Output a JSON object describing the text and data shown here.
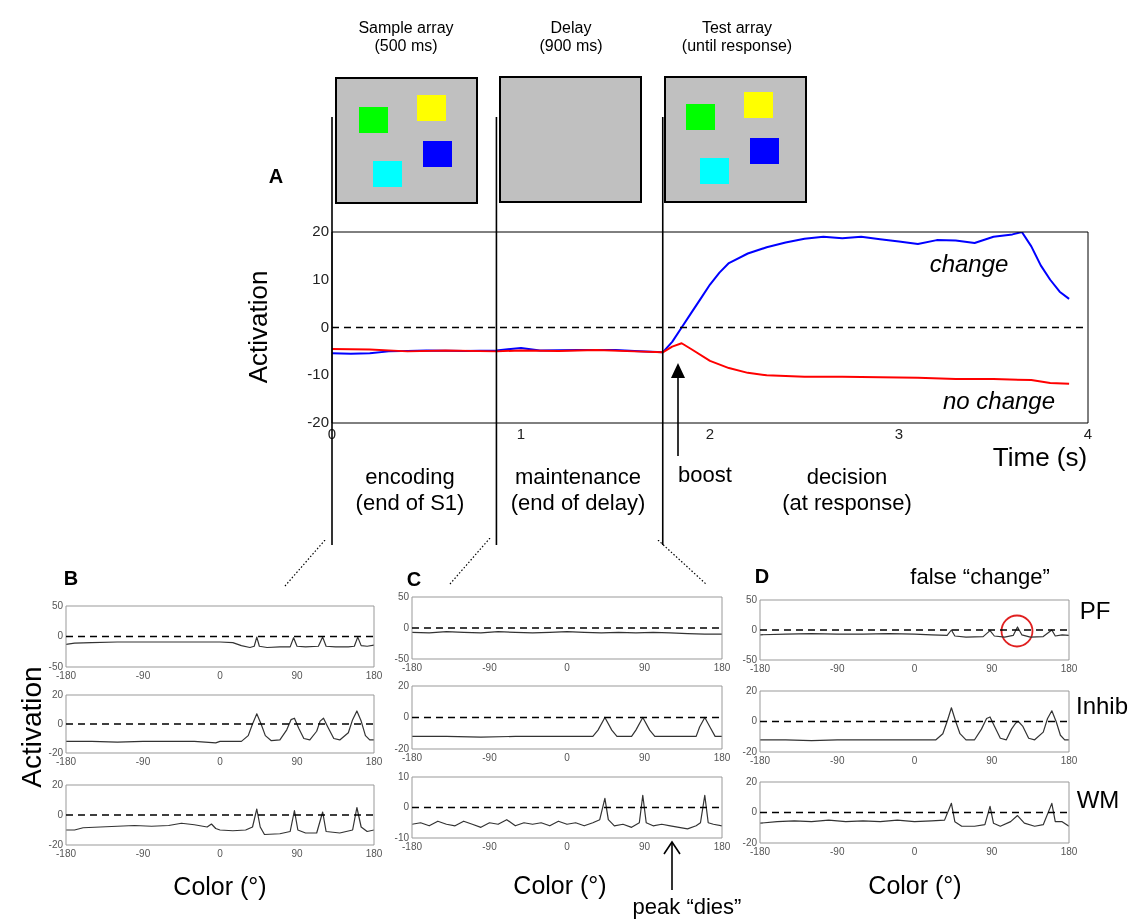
{
  "chart_data": [
    {
      "type": "line",
      "title": "A",
      "xlabel": "Time (s)",
      "ylabel": "Activation",
      "xlim": [
        0,
        4
      ],
      "xticks": [
        0,
        1,
        2,
        3,
        4
      ],
      "ylim": [
        -20,
        20
      ],
      "yticks": [
        -20,
        -10,
        0,
        10,
        20
      ],
      "series": [
        {
          "color": "#0000ff",
          "x": [
            0,
            0.1,
            0.2,
            0.3,
            0.5,
            0.7,
            0.87,
            1.0,
            1.1,
            1.3,
            1.5,
            1.6,
            1.75,
            1.8,
            1.85,
            1.9,
            1.95,
            2.0,
            2.05,
            2.1,
            2.2,
            2.3,
            2.4,
            2.5,
            2.6,
            2.7,
            2.8,
            2.9,
            3.0,
            3.1,
            3.2,
            3.3,
            3.4,
            3.5,
            3.6,
            3.65,
            3.7,
            3.75,
            3.8,
            3.85,
            3.9
          ],
          "values": [
            -5.4,
            -5.5,
            -5.4,
            -5,
            -4.8,
            -4.9,
            -4.8,
            -4.3,
            -4.8,
            -4.7,
            -4.7,
            -4.9,
            -5.2,
            -3,
            0,
            3,
            6,
            9,
            11.5,
            13.5,
            15.5,
            16.8,
            17.8,
            18.6,
            19,
            18.7,
            19,
            18.5,
            18,
            17.5,
            18.3,
            18.2,
            17.7,
            19,
            19.5,
            20,
            17,
            13,
            10,
            7.5,
            6
          ]
        },
        {
          "color": "#ff0000",
          "x": [
            0,
            0.2,
            0.4,
            0.6,
            0.87,
            1.0,
            1.2,
            1.4,
            1.6,
            1.75,
            1.8,
            1.85,
            1.9,
            2.0,
            2.1,
            2.2,
            2.3,
            2.5,
            2.7,
            2.9,
            3.1,
            3.3,
            3.5,
            3.7,
            3.8,
            3.9
          ],
          "values": [
            -4.5,
            -4.6,
            -5,
            -4.8,
            -5,
            -4.8,
            -4.9,
            -4.7,
            -5,
            -5.2,
            -4,
            -3.3,
            -4.5,
            -7,
            -8.5,
            -9.5,
            -10,
            -10.3,
            -10.3,
            -10.4,
            -10.5,
            -10.8,
            -10.8,
            -11,
            -11.6,
            -11.8
          ]
        }
      ],
      "ref_lines": [
        {
          "axis": "x",
          "value": 0
        },
        {
          "axis": "x",
          "value": 0.87
        },
        {
          "axis": "x",
          "value": 1.75
        },
        {
          "axis": "y",
          "value": 0,
          "line_style": "dashed"
        }
      ],
      "annotations": [
        "Sample array\n(500 ms)",
        "Delay\n(900 ms)",
        "Test array\n(until response)",
        "encoding\n(end of S1)",
        "maintenance\n(end of delay)",
        "boost",
        "decision\n(at response)",
        "change",
        "no change"
      ]
    },
    {
      "type": "line",
      "title": "B",
      "xlim": [
        -180,
        180
      ],
      "xticks": [
        -180,
        -90,
        0,
        90,
        180
      ],
      "ylim": [
        -50,
        50
      ],
      "yticks": [
        -50,
        0,
        50
      ],
      "series": [
        {
          "color": "#333333",
          "x": [
            -180,
            -170,
            -150,
            -120,
            -90,
            -60,
            -30,
            0,
            15,
            25,
            35,
            40,
            43,
            46,
            55,
            70,
            82,
            86,
            90,
            100,
            115,
            120,
            124,
            135,
            150,
            157,
            161,
            165,
            172,
            180
          ],
          "values": [
            -13,
            -11,
            -10,
            -9,
            -9,
            -9,
            -9,
            -9,
            -10,
            -15,
            -18,
            -16,
            -1,
            -16,
            -18,
            -17,
            -17,
            -2,
            -16,
            -17,
            -16,
            -1,
            -16,
            -17,
            -17,
            -16,
            -1,
            -15,
            -16,
            -14
          ]
        }
      ],
      "ref_lines": [
        {
          "axis": "y",
          "value": 0,
          "line_style": "dashed"
        }
      ]
    },
    {
      "type": "line",
      "ylabel": "Activation",
      "xlim": [
        -180,
        180
      ],
      "xticks": [
        -180,
        -90,
        0,
        90,
        180
      ],
      "ylim": [
        -20,
        20
      ],
      "yticks": [
        -20,
        0,
        20
      ],
      "series": [
        {
          "color": "#333333",
          "x": [
            -180,
            -150,
            -120,
            -90,
            -60,
            -30,
            -5,
            0,
            25,
            33,
            38,
            43,
            48,
            53,
            60,
            70,
            78,
            83,
            87,
            92,
            98,
            105,
            113,
            117,
            121,
            126,
            133,
            140,
            150,
            155,
            160,
            165,
            170,
            175,
            180
          ],
          "values": [
            -12,
            -12,
            -12.5,
            -12,
            -12,
            -12,
            -13,
            -12,
            -12,
            -8,
            0,
            7,
            0,
            -8,
            -11.5,
            -11,
            -4,
            3,
            4,
            -3,
            -10,
            -11,
            -5,
            2,
            4,
            -2,
            -10,
            -11,
            -6,
            3,
            9,
            2,
            -8,
            -11,
            -11
          ]
        }
      ],
      "ref_lines": [
        {
          "axis": "y",
          "value": 0,
          "line_style": "dashed"
        }
      ]
    },
    {
      "type": "line",
      "xlabel": "Color (°)",
      "xlim": [
        -180,
        180
      ],
      "xticks": [
        -180,
        -90,
        0,
        90,
        180
      ],
      "ylim": [
        -20,
        20
      ],
      "yticks": [
        -20,
        0,
        20
      ],
      "series": [
        {
          "color": "#333333",
          "x": [
            -180,
            -170,
            -160,
            -140,
            -120,
            -100,
            -80,
            -60,
            -45,
            -30,
            -15,
            -10,
            -5,
            0,
            15,
            30,
            38,
            43,
            47,
            52,
            70,
            82,
            87,
            91,
            100,
            113,
            120,
            124,
            140,
            155,
            160,
            165,
            172,
            180
          ],
          "values": [
            -10,
            -10,
            -8.5,
            -8,
            -7.5,
            -7,
            -7.5,
            -7,
            -5.5,
            -6.5,
            -8,
            -6,
            -9,
            -10,
            -10.5,
            -10,
            -8,
            4,
            -8,
            -13,
            -12.5,
            -11,
            3,
            -10,
            -12,
            -12,
            2,
            -11,
            -12,
            -10,
            5,
            -8,
            -11,
            -10
          ]
        }
      ],
      "ref_lines": [
        {
          "axis": "y",
          "value": 0,
          "line_style": "dashed"
        }
      ]
    },
    {
      "type": "line",
      "title": "C",
      "xlim": [
        -180,
        180
      ],
      "xticks": [
        -180,
        -90,
        0,
        90,
        180
      ],
      "ylim": [
        -50,
        50
      ],
      "yticks": [
        -50,
        0,
        50
      ],
      "series": [
        {
          "color": "#333333",
          "x": [
            -180,
            -160,
            -140,
            -120,
            -100,
            -80,
            -60,
            -40,
            -20,
            0,
            20,
            40,
            60,
            80,
            100,
            120,
            140,
            160,
            180
          ],
          "values": [
            -7,
            -8,
            -6,
            -7,
            -8,
            -6,
            -7,
            -8,
            -7,
            -6,
            -7,
            -8,
            -7,
            -8,
            -7,
            -8,
            -9,
            -10,
            -10
          ]
        }
      ],
      "ref_lines": [
        {
          "axis": "y",
          "value": 0,
          "line_style": "dashed"
        }
      ]
    },
    {
      "type": "line",
      "xlim": [
        -180,
        180
      ],
      "xticks": [
        -180,
        -90,
        0,
        90,
        180
      ],
      "ylim": [
        -20,
        20
      ],
      "yticks": [
        -20,
        0,
        20
      ],
      "series": [
        {
          "color": "#333333",
          "x": [
            -180,
            -140,
            -100,
            -60,
            -20,
            30,
            36,
            44,
            52,
            58,
            75,
            80,
            88,
            96,
            102,
            150,
            154,
            160,
            166,
            172,
            180
          ],
          "values": [
            -12,
            -12,
            -12.5,
            -12,
            -12,
            -12,
            -8,
            0,
            -8,
            -12,
            -12,
            -8,
            0,
            -8,
            -12,
            -12,
            -6,
            0,
            -6,
            -12,
            -12
          ]
        }
      ],
      "ref_lines": [
        {
          "axis": "y",
          "value": 0,
          "line_style": "dashed"
        }
      ]
    },
    {
      "type": "line",
      "xlabel": "Color (°)",
      "xlim": [
        -180,
        180
      ],
      "xticks": [
        -180,
        -90,
        0,
        90,
        180
      ],
      "ylim": [
        -10,
        10
      ],
      "yticks": [
        -10,
        0,
        10
      ],
      "series": [
        {
          "color": "#333333",
          "x": [
            -180,
            -170,
            -160,
            -150,
            -140,
            -130,
            -120,
            -110,
            -100,
            -90,
            -80,
            -70,
            -60,
            -50,
            -40,
            -30,
            -20,
            -10,
            0,
            10,
            20,
            30,
            38,
            44,
            48,
            55,
            65,
            75,
            84,
            88,
            92,
            100,
            110,
            120,
            130,
            140,
            150,
            155,
            160,
            164,
            170,
            180
          ],
          "values": [
            -5.5,
            -5,
            -6,
            -4.5,
            -5.5,
            -6,
            -4.5,
            -5.5,
            -6.5,
            -5,
            -5.5,
            -4,
            -6,
            -5,
            -5.5,
            -5,
            -6,
            -4.5,
            -5.5,
            -5,
            -6,
            -5,
            -4,
            3,
            -4,
            -6,
            -5.5,
            -6.5,
            -5,
            4,
            -5,
            -6,
            -5.5,
            -6,
            -6.5,
            -7,
            -6,
            -5,
            4,
            -5,
            -5.5,
            -6
          ]
        }
      ],
      "ref_lines": [
        {
          "axis": "y",
          "value": 0,
          "line_style": "dashed"
        }
      ],
      "annotations": [
        "peak “dies”"
      ]
    },
    {
      "type": "line",
      "title": "D",
      "xlim": [
        -180,
        180
      ],
      "xticks": [
        -180,
        -90,
        0,
        90,
        180
      ],
      "ylim": [
        -50,
        50
      ],
      "yticks": [
        -50,
        0,
        50
      ],
      "series": [
        {
          "color": "#333333",
          "x": [
            -180,
            -150,
            -120,
            -90,
            -60,
            -30,
            0,
            20,
            38,
            43,
            47,
            60,
            80,
            88,
            93,
            105,
            115,
            120,
            125,
            135,
            150,
            160,
            164,
            172,
            180
          ],
          "values": [
            -8,
            -7,
            -6,
            -7,
            -7,
            -6,
            -7,
            -8,
            -9,
            0,
            -10,
            -12,
            -11,
            -1,
            -10,
            -12,
            -9,
            5,
            -8,
            -12,
            -11,
            0,
            -10,
            -8,
            -9
          ]
        }
      ],
      "ref_lines": [
        {
          "axis": "y",
          "value": 0,
          "line_style": "dashed"
        }
      ],
      "annotations": [
        "false “change”",
        "PF"
      ]
    },
    {
      "type": "line",
      "xlim": [
        -180,
        180
      ],
      "xticks": [
        -180,
        -90,
        0,
        90,
        180
      ],
      "ylim": [
        -20,
        20
      ],
      "yticks": [
        -20,
        0,
        20
      ],
      "series": [
        {
          "color": "#333333",
          "x": [
            -180,
            -150,
            -120,
            -90,
            -60,
            -30,
            0,
            25,
            33,
            38,
            43,
            48,
            53,
            60,
            70,
            78,
            84,
            88,
            93,
            100,
            107,
            113,
            118,
            121,
            126,
            133,
            140,
            150,
            155,
            160,
            165,
            170,
            175,
            180
          ],
          "values": [
            -12,
            -12,
            -12.5,
            -12,
            -12,
            -12,
            -12,
            -12,
            -8,
            0,
            9,
            0,
            -8,
            -12,
            -12,
            -5,
            2,
            3,
            -3,
            -11,
            -12,
            -5,
            -1,
            0,
            -3,
            -11,
            -12,
            -7,
            2,
            7,
            0,
            -9,
            -12,
            -12
          ]
        }
      ],
      "ref_lines": [
        {
          "axis": "y",
          "value": 0,
          "line_style": "dashed"
        }
      ],
      "annotations": [
        "Inhib"
      ]
    },
    {
      "type": "line",
      "xlabel": "Color (°)",
      "xlim": [
        -180,
        180
      ],
      "xticks": [
        -180,
        -90,
        0,
        90,
        180
      ],
      "ylim": [
        -20,
        20
      ],
      "yticks": [
        -20,
        0,
        20
      ],
      "series": [
        {
          "color": "#333333",
          "x": [
            -180,
            -160,
            -140,
            -120,
            -100,
            -80,
            -60,
            -40,
            -20,
            0,
            20,
            35,
            43,
            47,
            55,
            70,
            82,
            88,
            92,
            100,
            112,
            120,
            128,
            140,
            150,
            160,
            164,
            172,
            180
          ],
          "values": [
            -7,
            -6,
            -5.5,
            -6,
            -5,
            -6,
            -5.5,
            -6,
            -5,
            -6,
            -5.5,
            -5,
            6,
            -6,
            -9,
            -9,
            -8,
            4,
            -7,
            -9,
            -6,
            -2,
            -7,
            -9,
            -8,
            6,
            -6,
            -6,
            -9
          ]
        }
      ],
      "ref_lines": [
        {
          "axis": "y",
          "value": 0,
          "line_style": "dashed"
        }
      ],
      "annotations": [
        "WM"
      ]
    }
  ]
}
